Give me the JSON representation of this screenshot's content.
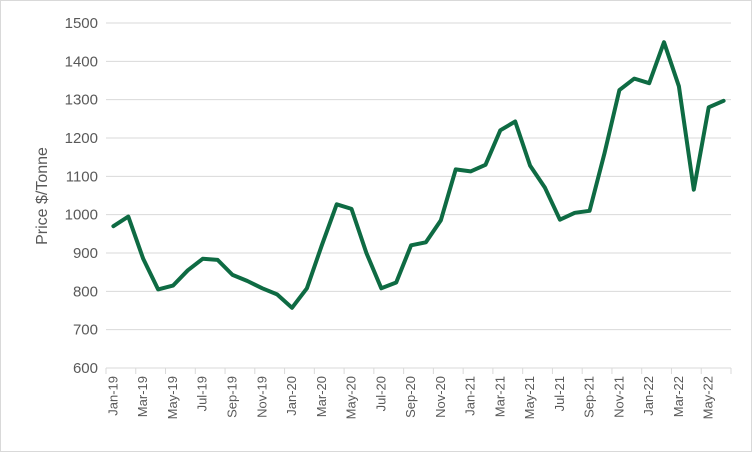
{
  "chart_data": {
    "type": "line",
    "title": "",
    "xlabel": "",
    "ylabel": "Price $/Tonne",
    "ylim": [
      600,
      1500
    ],
    "yticks": [
      600,
      700,
      800,
      900,
      1000,
      1100,
      1200,
      1300,
      1400,
      1500
    ],
    "grid": true,
    "line_color": "#0e6b43",
    "grid_color": "#d9d9d9",
    "categories": [
      "Jan-19",
      "Feb-19",
      "Mar-19",
      "Apr-19",
      "May-19",
      "Jun-19",
      "Jul-19",
      "Aug-19",
      "Sep-19",
      "Oct-19",
      "Nov-19",
      "Dec-19",
      "Jan-20",
      "Feb-20",
      "Mar-20",
      "Apr-20",
      "May-20",
      "Jun-20",
      "Jul-20",
      "Aug-20",
      "Sep-20",
      "Oct-20",
      "Nov-20",
      "Dec-20",
      "Jan-21",
      "Feb-21",
      "Mar-21",
      "Apr-21",
      "May-21",
      "Jun-21",
      "Jul-21",
      "Aug-21",
      "Sep-21",
      "Oct-21",
      "Nov-21",
      "Dec-21",
      "Jan-22",
      "Feb-22",
      "Mar-22",
      "Apr-22",
      "May-22",
      "Jun-22"
    ],
    "tick_labels": [
      "Jan-19",
      "Mar-19",
      "May-19",
      "Jul-19",
      "Sep-19",
      "Nov-19",
      "Jan-20",
      "Mar-20",
      "May-20",
      "Jul-20",
      "Sep-20",
      "Nov-20",
      "Jan-21",
      "Mar-21",
      "May-21",
      "Jul-21",
      "Sep-21",
      "Nov-21",
      "Jan-22",
      "Mar-22",
      "May-22"
    ],
    "series": [
      {
        "values": [
          970,
          995,
          885,
          805,
          815,
          855,
          885,
          882,
          843,
          827,
          808,
          792,
          757,
          808,
          920,
          1027,
          1015,
          900,
          808,
          823,
          920,
          928,
          985,
          1118,
          1113,
          1130,
          1220,
          1243,
          1128,
          1070,
          987,
          1005,
          1010,
          1160,
          1325,
          1355,
          1343,
          1450,
          1335,
          1065,
          1280,
          1297
        ]
      }
    ]
  }
}
